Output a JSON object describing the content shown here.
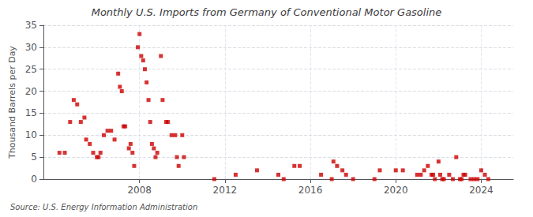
{
  "chart_data": {
    "type": "scatter",
    "title": "Monthly U.S. Imports from Germany of Conventional Motor Gasoline",
    "ylabel": "Thousand Barrels per Day",
    "annotation": "Source: U.S. Energy Information Administration",
    "color": "#cc0000",
    "marker": "square",
    "grid": true,
    "xlim": [
      2003.5,
      2025.5
    ],
    "xticks": [
      2008,
      2012,
      2016,
      2020,
      2024
    ],
    "ylim": [
      0,
      35
    ],
    "yticks": [
      0,
      5,
      10,
      15,
      20,
      25,
      30,
      35
    ],
    "x": [
      2004.25,
      2004.5,
      2004.75,
      2004.92,
      2005.08,
      2005.25,
      2005.42,
      2005.5,
      2005.67,
      2005.83,
      2006.0,
      2006.08,
      2006.17,
      2006.33,
      2006.5,
      2006.67,
      2006.83,
      2007.0,
      2007.08,
      2007.17,
      2007.25,
      2007.33,
      2007.5,
      2007.58,
      2007.67,
      2007.75,
      2007.92,
      2008.0,
      2008.08,
      2008.17,
      2008.25,
      2008.33,
      2008.42,
      2008.5,
      2008.58,
      2008.67,
      2008.75,
      2008.83,
      2009.0,
      2009.08,
      2009.25,
      2009.33,
      2009.5,
      2009.67,
      2009.75,
      2009.83,
      2010.0,
      2010.08,
      2011.5,
      2012.5,
      2013.5,
      2014.5,
      2014.75,
      2015.25,
      2015.5,
      2016.5,
      2017.0,
      2017.08,
      2017.25,
      2017.5,
      2017.67,
      2018.0,
      2019.0,
      2019.25,
      2020.0,
      2020.33,
      2021.0,
      2021.17,
      2021.33,
      2021.5,
      2021.67,
      2021.75,
      2021.83,
      2022.0,
      2022.08,
      2022.17,
      2022.25,
      2022.5,
      2022.67,
      2022.83,
      2023.0,
      2023.08,
      2023.17,
      2023.25,
      2023.5,
      2023.67,
      2023.83,
      2024.0,
      2024.17,
      2024.33
    ],
    "values": [
      6,
      6,
      13,
      18,
      17,
      13,
      14,
      9,
      8,
      6,
      5,
      5,
      6,
      10,
      11,
      11,
      9,
      24,
      21,
      20,
      12,
      12,
      7,
      8,
      6,
      3,
      30,
      33,
      28,
      27,
      25,
      22,
      18,
      13,
      8,
      7,
      5,
      6,
      28,
      18,
      13,
      13,
      10,
      10,
      5,
      3,
      10,
      5,
      0,
      1,
      2,
      1,
      0,
      3,
      3,
      1,
      0,
      4,
      3,
      2,
      1,
      0,
      0,
      2,
      2,
      2,
      1,
      1,
      2,
      3,
      1,
      1,
      0,
      4,
      1,
      0,
      0,
      1,
      0,
      5,
      0,
      0,
      1,
      1,
      0,
      0,
      0,
      2,
      1,
      0
    ]
  }
}
